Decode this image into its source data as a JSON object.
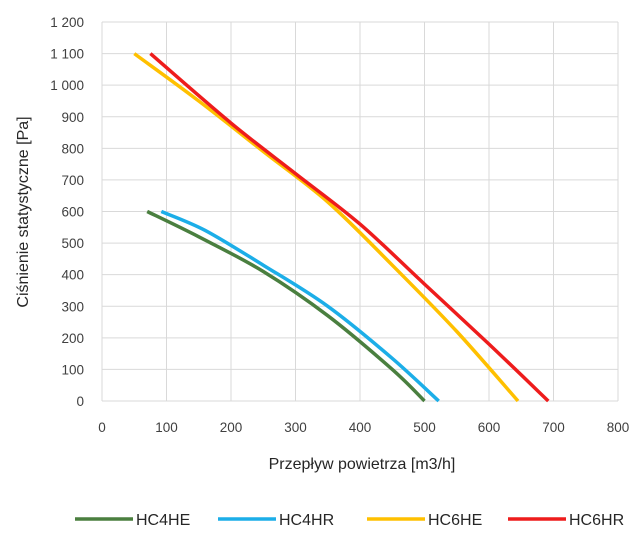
{
  "chart_data": {
    "type": "line",
    "title": "",
    "xlabel": "Przepływ powietrza [m3/h]",
    "ylabel": "Ciśnienie statystyczne [Pa]",
    "xlim": [
      0,
      800
    ],
    "ylim": [
      0,
      1200
    ],
    "x_ticks": [
      0,
      100,
      200,
      300,
      400,
      500,
      600,
      700,
      800
    ],
    "y_ticks": [
      0,
      100,
      200,
      300,
      400,
      500,
      600,
      700,
      800,
      900,
      1000,
      1100,
      1200
    ],
    "x_tick_labels": [
      "0",
      "100",
      "200",
      "300",
      "400",
      "500",
      "600",
      "700",
      "800"
    ],
    "y_tick_labels": [
      "0",
      "100",
      "200",
      "300",
      "400",
      "500",
      "600",
      "700",
      "800",
      "900",
      "1 000",
      "1 100",
      "1 200"
    ],
    "grid": true,
    "legend_position": "bottom",
    "series": [
      {
        "name": "HC4HE",
        "color": "#4a7f3f",
        "points": [
          [
            70,
            600
          ],
          [
            150,
            520
          ],
          [
            250,
            410
          ],
          [
            350,
            270
          ],
          [
            450,
            100
          ],
          [
            500,
            0
          ]
        ]
      },
      {
        "name": "HC4HR",
        "color": "#1caee8",
        "points": [
          [
            92,
            600
          ],
          [
            160,
            540
          ],
          [
            250,
            430
          ],
          [
            350,
            300
          ],
          [
            450,
            135
          ],
          [
            522,
            0
          ]
        ]
      },
      {
        "name": "HC6HE",
        "color": "#ffc000",
        "points": [
          [
            50,
            1100
          ],
          [
            150,
            950
          ],
          [
            250,
            790
          ],
          [
            350,
            630
          ],
          [
            450,
            430
          ],
          [
            550,
            220
          ],
          [
            645,
            0
          ]
        ]
      },
      {
        "name": "HC6HR",
        "color": "#ee1c1c",
        "points": [
          [
            75,
            1100
          ],
          [
            200,
            880
          ],
          [
            300,
            720
          ],
          [
            400,
            560
          ],
          [
            500,
            370
          ],
          [
            600,
            180
          ],
          [
            692,
            0
          ]
        ]
      }
    ]
  }
}
